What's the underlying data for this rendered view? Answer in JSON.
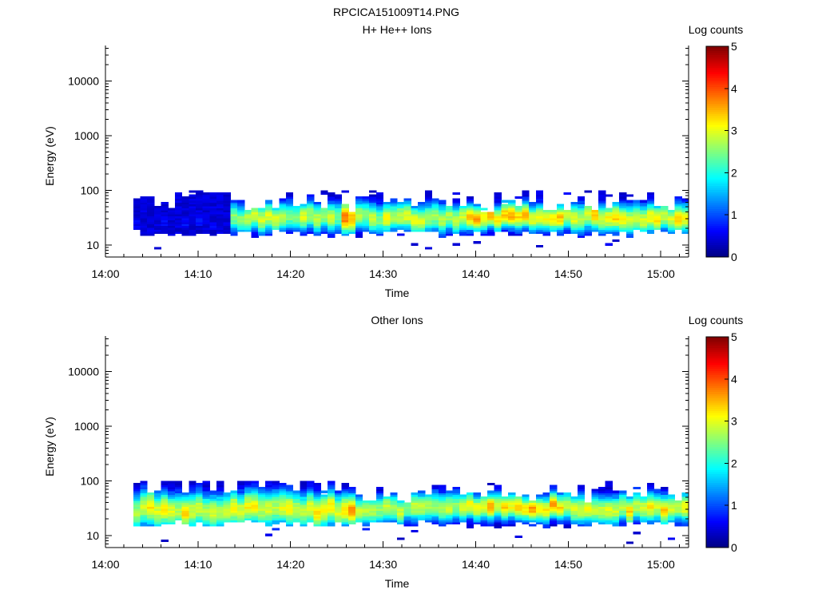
{
  "page_title": "RPCICA151009T14.PNG",
  "colormap": [
    "#00007f",
    "#0000ff",
    "#007fff",
    "#00ffff",
    "#7fff7f",
    "#ffff00",
    "#ff7f00",
    "#ff0000",
    "#7f0000"
  ],
  "chart_data": [
    {
      "type": "heatmap",
      "title": "H+ He++ Ions",
      "xlabel": "Time",
      "ylabel": "Energy (eV)",
      "xlim": [
        "14:00",
        "15:03"
      ],
      "ylim": [
        6,
        45000
      ],
      "yscale": "log",
      "xticks": [
        "14:00",
        "14:10",
        "14:20",
        "14:30",
        "14:40",
        "14:50",
        "15:00"
      ],
      "yticks": [
        "10",
        "100",
        "1000",
        "10000"
      ],
      "colorbar": {
        "label": "Log counts",
        "range": [
          0,
          5
        ],
        "ticks": [
          "0",
          "1",
          "2",
          "3",
          "4",
          "5"
        ]
      },
      "time_range": [
        "14:03",
        "15:03"
      ],
      "profile": [
        {
          "from": "14:03",
          "to": "14:13",
          "center_eV": 25,
          "peak_log_counts": 0.8,
          "width": 0.6
        },
        {
          "from": "14:13",
          "to": "14:25",
          "center_eV": 33,
          "peak_log_counts": 3.0,
          "width": 0.9
        },
        {
          "from": "14:25",
          "to": "14:27",
          "center_eV": 33,
          "peak_log_counts": 3.9,
          "width": 1.0
        },
        {
          "from": "14:27",
          "to": "14:39",
          "center_eV": 31,
          "peak_log_counts": 3.1,
          "width": 0.9
        },
        {
          "from": "14:39",
          "to": "14:49",
          "center_eV": 33,
          "peak_log_counts": 3.6,
          "width": 0.8
        },
        {
          "from": "14:49",
          "to": "15:03",
          "center_eV": 32,
          "peak_log_counts": 3.4,
          "width": 0.9
        }
      ]
    },
    {
      "type": "heatmap",
      "title": "Other Ions",
      "xlabel": "Time",
      "ylabel": "Energy (eV)",
      "xlim": [
        "14:00",
        "15:03"
      ],
      "ylim": [
        6,
        45000
      ],
      "yscale": "log",
      "xticks": [
        "14:00",
        "14:10",
        "14:20",
        "14:30",
        "14:40",
        "14:50",
        "15:00"
      ],
      "yticks": [
        "10",
        "100",
        "1000",
        "10000"
      ],
      "colorbar": {
        "label": "Log counts",
        "range": [
          0,
          5
        ],
        "ticks": [
          "0",
          "1",
          "2",
          "3",
          "4",
          "5"
        ]
      },
      "time_range": [
        "14:03",
        "15:03"
      ],
      "profile": [
        {
          "from": "14:03",
          "to": "14:25",
          "center_eV": 30,
          "peak_log_counts": 3.3,
          "width": 1.1
        },
        {
          "from": "14:25",
          "to": "14:27",
          "center_eV": 32,
          "peak_log_counts": 3.9,
          "width": 1.0
        },
        {
          "from": "14:27",
          "to": "14:39",
          "center_eV": 31,
          "peak_log_counts": 3.1,
          "width": 0.9
        },
        {
          "from": "14:39",
          "to": "14:49",
          "center_eV": 33,
          "peak_log_counts": 3.6,
          "width": 0.8
        },
        {
          "from": "14:49",
          "to": "15:03",
          "center_eV": 32,
          "peak_log_counts": 3.4,
          "width": 0.9
        }
      ]
    }
  ]
}
